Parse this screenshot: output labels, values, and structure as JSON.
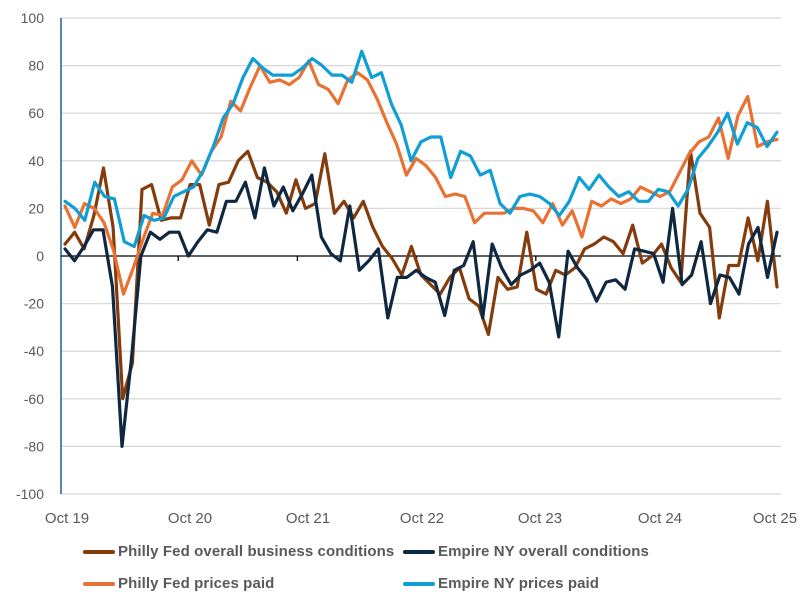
{
  "chart_data": {
    "type": "line",
    "title": "",
    "xlabel": "",
    "ylabel": "",
    "ylim": [
      -100,
      100
    ],
    "yticks": [
      100,
      80,
      60,
      40,
      20,
      0,
      -20,
      -40,
      -60,
      -80,
      -100
    ],
    "xtick_labels": [
      "Oct 19",
      "Oct 20",
      "Oct 21",
      "Oct 22",
      "Oct 23",
      "Oct 24",
      "Oct 25"
    ],
    "x_start": "Oct 2019",
    "x_end": "Oct 2025",
    "frequency": "monthly",
    "grid": true,
    "legend_position": "bottom",
    "series": [
      {
        "name": "Philly Fed overall business conditions",
        "color": "#843c0c",
        "values": [
          5,
          10,
          3,
          17,
          37,
          12,
          -60,
          -45,
          28,
          30,
          15,
          16,
          16,
          30,
          30,
          13,
          30,
          31,
          40,
          44,
          33,
          31,
          27,
          18,
          32,
          20,
          22,
          43,
          18,
          23,
          16,
          23,
          12,
          4,
          -1,
          -8,
          4,
          -8,
          -12,
          -16,
          -9,
          -5,
          -18,
          -21,
          -33,
          -9,
          -14,
          -13,
          10,
          -14,
          -16,
          -6,
          -8,
          -5,
          3,
          5,
          8,
          6,
          1,
          13,
          -3,
          0,
          5,
          -5,
          -11,
          44,
          18,
          12,
          -26,
          -4,
          -4,
          16,
          -2,
          23,
          -13
        ]
      },
      {
        "name": "Empire NY overall conditions",
        "color": "#0e2841",
        "values": [
          3,
          -2,
          4,
          11,
          11,
          -13,
          -80,
          -43,
          0,
          10,
          7,
          10,
          10,
          0,
          6,
          11,
          10,
          23,
          23,
          31,
          16,
          37,
          21,
          29,
          19,
          26,
          34,
          8,
          1,
          -2,
          21,
          -6,
          -2,
          3,
          -26,
          -9,
          -9,
          -6,
          -9,
          -11,
          -25,
          -6,
          -4,
          6,
          -26,
          5,
          -5,
          -12,
          -8,
          -6,
          -3,
          -11,
          -34,
          2,
          -5,
          -10,
          -19,
          -11,
          -10,
          -14,
          3,
          2,
          1,
          -11,
          20,
          -12,
          -8,
          6,
          -20,
          -8,
          -9,
          -16,
          5,
          12,
          -9,
          10
        ]
      },
      {
        "name": "Philly Fed prices paid",
        "color": "#e97132",
        "values": [
          21,
          12,
          22,
          20,
          14,
          2,
          -16,
          -5,
          7,
          18,
          17,
          29,
          32,
          40,
          34,
          44,
          50,
          65,
          61,
          71,
          80,
          73,
          74,
          72,
          75,
          82,
          72,
          70,
          64,
          74,
          77,
          74,
          66,
          56,
          47,
          34,
          41,
          38,
          33,
          25,
          26,
          25,
          14,
          18,
          18,
          18,
          20,
          20,
          19,
          14,
          22,
          13,
          19,
          8,
          23,
          21,
          24,
          22,
          24,
          29,
          27,
          25,
          27,
          35,
          43,
          48,
          50,
          58,
          41,
          59,
          67,
          46,
          48,
          49
        ]
      },
      {
        "name": "Empire NY prices paid",
        "color": "#0f9ed5",
        "values": [
          23,
          20,
          15,
          31,
          25,
          24,
          6,
          4,
          17,
          15,
          16,
          25,
          27,
          29,
          36,
          46,
          58,
          64,
          75,
          83,
          79,
          76,
          76,
          76,
          79,
          83,
          80,
          76,
          76,
          73,
          86,
          75,
          77,
          64,
          55,
          40,
          48,
          50,
          50,
          33,
          44,
          42,
          34,
          36,
          22,
          18,
          25,
          26,
          25,
          22,
          17,
          23,
          33,
          28,
          34,
          29,
          25,
          27,
          23,
          23,
          28,
          27,
          21,
          28,
          41,
          46,
          52,
          60,
          47,
          56,
          54,
          46,
          52
        ]
      }
    ]
  },
  "legend": {
    "items": [
      {
        "label": "Philly Fed overall business conditions",
        "color": "#843c0c"
      },
      {
        "label": "Empire NY overall conditions",
        "color": "#0e2841"
      },
      {
        "label": "Philly Fed prices paid",
        "color": "#e97132"
      },
      {
        "label": "Empire NY prices paid",
        "color": "#0f9ed5"
      }
    ]
  }
}
